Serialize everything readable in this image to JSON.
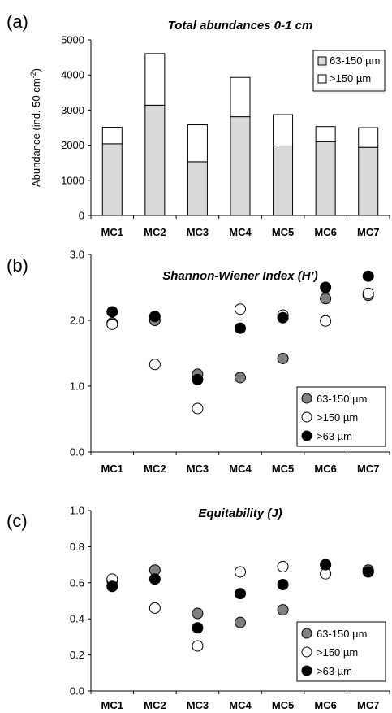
{
  "chart_data": [
    {
      "panel": "(a)",
      "type": "bar",
      "stacked": true,
      "title": "Total abundances 0-1 cm",
      "ylabel": "Abundance (ind. 50 cm",
      "ylabel_sup": "-2",
      "ylabel_end": ")",
      "ylim": [
        0,
        5000
      ],
      "yticks": [
        "0",
        "1000",
        "2000",
        "3000",
        "4000",
        "5000"
      ],
      "categories": [
        "MC1",
        "MC2",
        "MC3",
        "MC4",
        "MC5",
        "MC6",
        "MC7"
      ],
      "series": [
        {
          "name": "63-150 µm",
          "color": "#d9d9d9",
          "values": [
            2040,
            3140,
            1530,
            2810,
            1980,
            2100,
            1940
          ]
        },
        {
          "name": ">150 µm",
          "color": "#ffffff",
          "values": [
            470,
            1470,
            1050,
            1120,
            890,
            430,
            560
          ]
        }
      ],
      "legend_position": "top-right",
      "grid": false
    },
    {
      "panel": "(b)",
      "type": "scatter",
      "title": "Shannon-Wiener Index (H’)",
      "ylim": [
        0,
        3
      ],
      "yticks": [
        "0.0",
        "1.0",
        "2.0",
        "3.0"
      ],
      "categories": [
        "MC1",
        "MC2",
        "MC3",
        "MC4",
        "MC5",
        "MC6",
        "MC7"
      ],
      "series": [
        {
          "name": "63-150 µm",
          "color": "#808080",
          "values": [
            1.96,
            2.0,
            1.18,
            1.13,
            1.42,
            2.33,
            2.38
          ]
        },
        {
          "name": ">150 µm",
          "color": "#ffffff",
          "values": [
            1.94,
            1.33,
            0.66,
            2.17,
            2.08,
            1.99,
            2.41
          ]
        },
        {
          "name": ">63 µm",
          "color": "#000000",
          "values": [
            2.13,
            2.06,
            1.1,
            1.88,
            2.04,
            2.5,
            2.67
          ]
        }
      ],
      "legend_position": "bottom-right",
      "grid": false
    },
    {
      "panel": "(c)",
      "type": "scatter",
      "title": "Equitability (J)",
      "ylim": [
        0,
        1
      ],
      "yticks": [
        "0.0",
        "0.2",
        "0.4",
        "0.6",
        "0.8",
        "1.0"
      ],
      "categories": [
        "MC1",
        "MC2",
        "MC3",
        "MC4",
        "MC5",
        "MC6",
        "MC7"
      ],
      "series": [
        {
          "name": "63-150 µm",
          "color": "#808080",
          "values": [
            0.61,
            0.67,
            0.43,
            0.38,
            0.45,
            0.7,
            0.67
          ]
        },
        {
          "name": ">150 µm",
          "color": "#ffffff",
          "values": [
            0.62,
            0.46,
            0.25,
            0.66,
            0.69,
            0.65,
            0.66
          ]
        },
        {
          "name": ">63 µm",
          "color": "#000000",
          "values": [
            0.58,
            0.62,
            0.35,
            0.54,
            0.59,
            0.7,
            0.66
          ]
        }
      ],
      "legend_position": "bottom-right",
      "grid": false
    }
  ]
}
